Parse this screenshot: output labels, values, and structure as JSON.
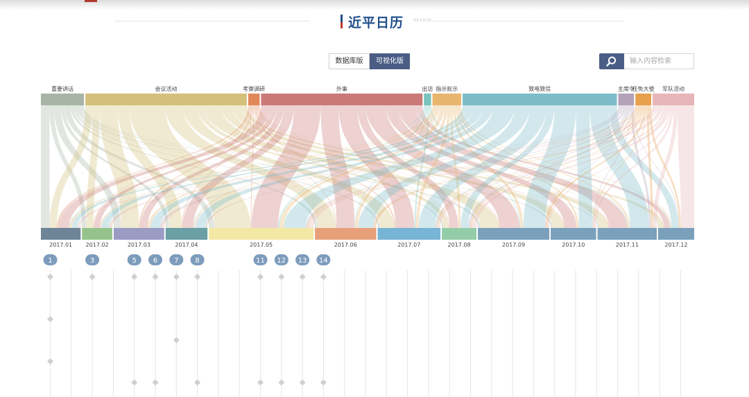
{
  "header": {
    "title": "近平日历",
    "subtitle": "REVIEW"
  },
  "toggle": {
    "database_label": "数据库版",
    "visual_label": "可视化版"
  },
  "search": {
    "placeholder": "输入内容检索"
  },
  "chart_data": {
    "type": "sankey",
    "title": "近平日历",
    "categories": [
      {
        "name": "重要讲话",
        "value": 6.0,
        "color": "#a8b5a6"
      },
      {
        "name": "会议活动",
        "value": 22.5,
        "color": "#d4c07a"
      },
      {
        "name": "考察调研",
        "value": 1.6,
        "color": "#e0885a"
      },
      {
        "name": "外事",
        "value": 22.5,
        "color": "#c97a78"
      },
      {
        "name": "出访",
        "value": 1.0,
        "color": "#78c4bc"
      },
      {
        "name": "指示批示",
        "value": 4.0,
        "color": "#e8b56e"
      },
      {
        "name": "致电致信",
        "value": 21.5,
        "color": "#7cbcc8"
      },
      {
        "name": "主席令",
        "value": 2.2,
        "color": "#b4a2b8"
      },
      {
        "name": "任免大使",
        "value": 2.2,
        "color": "#e8a04c"
      },
      {
        "name": "军队活动",
        "value": 5.8,
        "color": "#e8b6b8"
      }
    ],
    "months": [
      {
        "name": "2017.01",
        "value": 5.5,
        "color": "#6e8498"
      },
      {
        "name": "2017.02",
        "value": 4.2,
        "color": "#94c48c"
      },
      {
        "name": "2017.03",
        "value": 7.0,
        "color": "#9a9cc4"
      },
      {
        "name": "2017.04",
        "value": 5.8,
        "color": "#6a9fa6"
      },
      {
        "name": "2017.05",
        "value": 14.5,
        "color": "#f2e8a4"
      },
      {
        "name": "2017.06",
        "value": 8.5,
        "color": "#e8a07a"
      },
      {
        "name": "2017.07",
        "value": 8.7,
        "color": "#78b4d4"
      },
      {
        "name": "2017.08",
        "value": 4.8,
        "color": "#94cca8"
      },
      {
        "name": "2017.09",
        "value": 9.9,
        "color": "#7aa0bc"
      },
      {
        "name": "2017.10",
        "value": 6.3,
        "color": "#7aa0bc"
      },
      {
        "name": "2017.11",
        "value": 8.2,
        "color": "#7aa0bc"
      },
      {
        "name": "2017.12",
        "value": 5.0,
        "color": "#7aa0bc"
      }
    ],
    "flows": [
      [
        1.2,
        0.6,
        1.0,
        0.5,
        0.8,
        0.4,
        0.3,
        0.2,
        0.4,
        0.3,
        0.2,
        0.1
      ],
      [
        1.0,
        1.0,
        2.5,
        1.6,
        5.0,
        2.5,
        2.0,
        0.8,
        2.5,
        1.5,
        1.3,
        0.8
      ],
      [
        0.3,
        0.1,
        0.2,
        0.1,
        0.1,
        0.1,
        0.2,
        0.1,
        0.1,
        0.1,
        0.1,
        0.1
      ],
      [
        1.4,
        0.8,
        1.0,
        1.4,
        3.7,
        2.5,
        2.6,
        1.2,
        2.8,
        1.7,
        2.5,
        0.9
      ],
      [
        0.1,
        0.0,
        0.0,
        0.1,
        0.2,
        0.1,
        0.2,
        0.0,
        0.1,
        0.0,
        0.1,
        0.1
      ],
      [
        0.3,
        0.2,
        0.4,
        0.2,
        0.6,
        0.4,
        0.4,
        0.3,
        0.4,
        0.3,
        0.3,
        0.2
      ],
      [
        0.7,
        1.0,
        1.3,
        1.3,
        3.0,
        2.1,
        2.3,
        1.1,
        3.0,
        1.9,
        2.6,
        1.2
      ],
      [
        0.1,
        0.2,
        0.3,
        0.1,
        0.3,
        0.1,
        0.2,
        0.3,
        0.1,
        0.1,
        0.3,
        0.1
      ],
      [
        0.0,
        0.1,
        0.1,
        0.1,
        0.2,
        0.3,
        0.2,
        0.2,
        0.3,
        0.1,
        0.3,
        0.3
      ],
      [
        0.4,
        0.2,
        0.2,
        0.0,
        0.6,
        0.0,
        0.3,
        0.6,
        0.2,
        0.3,
        0.5,
        2.2
      ]
    ],
    "day_labels": [
      "1",
      "3",
      "5",
      "6",
      "7",
      "8",
      "11",
      "12",
      "13",
      "14"
    ],
    "day_columns": [
      1,
      3,
      5,
      6,
      7,
      8,
      11,
      12,
      13,
      14
    ],
    "total_columns": 31,
    "events": [
      {
        "day": 1,
        "row": 0
      },
      {
        "day": 1,
        "row": 2
      },
      {
        "day": 1,
        "row": 4
      },
      {
        "day": 3,
        "row": 0
      },
      {
        "day": 5,
        "row": 0
      },
      {
        "day": 5,
        "row": 5
      },
      {
        "day": 6,
        "row": 0
      },
      {
        "day": 6,
        "row": 5
      },
      {
        "day": 7,
        "row": 0
      },
      {
        "day": 7,
        "row": 3
      },
      {
        "day": 8,
        "row": 0
      },
      {
        "day": 8,
        "row": 5
      },
      {
        "day": 11,
        "row": 0
      },
      {
        "day": 11,
        "row": 5
      },
      {
        "day": 12,
        "row": 0
      },
      {
        "day": 12,
        "row": 5
      },
      {
        "day": 13,
        "row": 0
      },
      {
        "day": 13,
        "row": 5
      },
      {
        "day": 14,
        "row": 0
      },
      {
        "day": 14,
        "row": 5
      }
    ]
  }
}
